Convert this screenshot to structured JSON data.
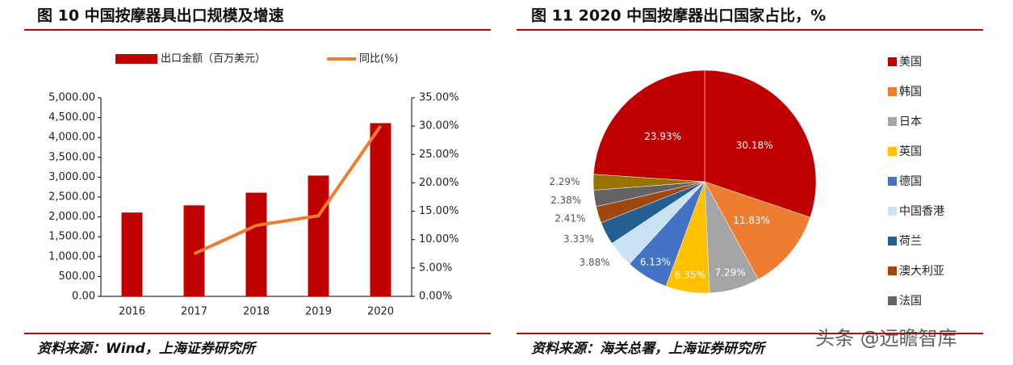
{
  "chart_data": [
    {
      "type": "bar-line",
      "title": "图 10 中国按摩器具出口规模及增速",
      "source": "资料来源：Wind，上海证券研究所",
      "categories": [
        "2016",
        "2017",
        "2018",
        "2019",
        "2020"
      ],
      "series": [
        {
          "name": "出口金额（百万美元）",
          "color": "#c00000",
          "type": "bar",
          "values": [
            2110,
            2290,
            2610,
            3040,
            4360
          ]
        },
        {
          "name": "同比(%)",
          "color": "#ed7d31",
          "type": "line",
          "axis": "y2",
          "values": [
            null,
            7.5,
            12.5,
            14.2,
            30.0
          ]
        }
      ],
      "ylim": [
        0,
        5000
      ],
      "yticks": [
        {
          "value": 0,
          "label": "0.00"
        },
        {
          "value": 500,
          "label": "500.00"
        },
        {
          "value": 1000,
          "label": "1,000.00"
        },
        {
          "value": 1500,
          "label": "1,500.00"
        },
        {
          "value": 2000,
          "label": "2,000.00"
        },
        {
          "value": 2500,
          "label": "2,500.00"
        },
        {
          "value": 3000,
          "label": "3,000.00"
        },
        {
          "value": 3500,
          "label": "3,500.00"
        },
        {
          "value": 4000,
          "label": "4,000.00"
        },
        {
          "value": 4500,
          "label": "4,500.00"
        },
        {
          "value": 5000,
          "label": "5,000.00"
        }
      ],
      "y2lim": [
        0,
        35
      ],
      "y2ticks": [
        {
          "value": 0,
          "label": "0.00%"
        },
        {
          "value": 5,
          "label": "5.00%"
        },
        {
          "value": 10,
          "label": "10.00%"
        },
        {
          "value": 15,
          "label": "15.00%"
        },
        {
          "value": 20,
          "label": "20.00%"
        },
        {
          "value": 25,
          "label": "25.00%"
        },
        {
          "value": 30,
          "label": "30.00%"
        },
        {
          "value": 35,
          "label": "35.00%"
        }
      ]
    },
    {
      "type": "pie",
      "title": "图 11 2020 中国按摩器出口国家占比，%",
      "source": "资料来源：海关总署，上海证券研究所",
      "categories": [
        "美国",
        "韩国",
        "日本",
        "英国",
        "德国",
        "中国香港",
        "荷兰",
        "澳大利亚",
        "法国",
        null,
        null
      ],
      "values": [
        30.18,
        11.83,
        7.29,
        6.35,
        6.13,
        3.88,
        3.33,
        2.41,
        2.38,
        2.29,
        23.93
      ],
      "value_labels": [
        "30.18%",
        "11.83%",
        "7.29%",
        "6.35%",
        "6.13%",
        "3.88%",
        "3.33%",
        "2.41%",
        "2.38%",
        "2.29%",
        "23.93%"
      ],
      "colors": [
        "#c00000",
        "#ed7d31",
        "#a5a5a5",
        "#ffc000",
        "#4472c4",
        "#c9e3f3",
        "#255e91",
        "#9e480e",
        "#636363",
        "#997300",
        "#c00000"
      ]
    }
  ],
  "watermark": "头条 @远瞻智库"
}
